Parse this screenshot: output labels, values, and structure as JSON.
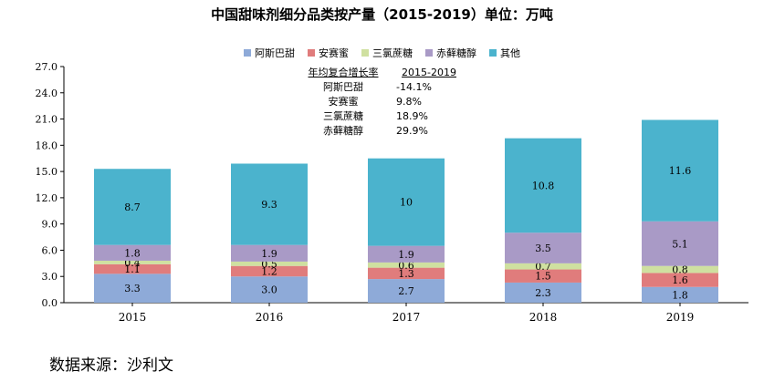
{
  "chart_data": {
    "type": "bar",
    "stacked": true,
    "title": "中国甜味剂细分品类按产量（2015-2019）单位：万吨",
    "categories": [
      "2015",
      "2016",
      "2017",
      "2018",
      "2019"
    ],
    "ylim": [
      0,
      27
    ],
    "yticks": [
      "0.0",
      "3.0",
      "6.0",
      "9.0",
      "12.0",
      "15.0",
      "18.0",
      "21.0",
      "24.0",
      "27.0"
    ],
    "grid": false,
    "legend_position": "top",
    "series": [
      {
        "name": "阿斯巴甜",
        "color": "#8eaad8",
        "values": [
          3.3,
          3.0,
          2.7,
          2.3,
          1.8
        ],
        "labels": [
          "3.3",
          "3.0",
          "2.7",
          "2.3",
          "1.8"
        ]
      },
      {
        "name": "安赛蜜",
        "color": "#e07c7c",
        "values": [
          1.1,
          1.2,
          1.3,
          1.5,
          1.6
        ],
        "labels": [
          "1.1",
          "1.2",
          "1.3",
          "1.5",
          "1.6"
        ]
      },
      {
        "name": "三氯蔗糖",
        "color": "#cfe0a0",
        "values": [
          0.4,
          0.5,
          0.6,
          0.7,
          0.8
        ],
        "labels": [
          "0.4",
          "0.5",
          "0.6",
          "0.7",
          "0.8"
        ]
      },
      {
        "name": "赤藓糖醇",
        "color": "#a99ac6",
        "values": [
          1.8,
          1.9,
          1.9,
          3.5,
          5.1
        ],
        "labels": [
          "1.8",
          "1.9",
          "1.9",
          "3.5",
          "5.1"
        ]
      },
      {
        "name": "其他",
        "color": "#4bb3cd",
        "values": [
          8.7,
          9.3,
          10,
          10.8,
          11.6
        ],
        "labels": [
          "8.7",
          "9.3",
          "10",
          "10.8",
          "11.6"
        ]
      }
    ],
    "cagr_table": {
      "header": [
        "年均复合增长率",
        "2015-2019"
      ],
      "rows": [
        [
          "阿斯巴甜",
          "-14.1%"
        ],
        [
          "安赛蜜",
          "9.8%"
        ],
        [
          "三氯蔗糖",
          "18.9%"
        ],
        [
          "赤藓糖醇",
          "29.9%"
        ]
      ]
    }
  },
  "source": "数据来源：沙利文"
}
